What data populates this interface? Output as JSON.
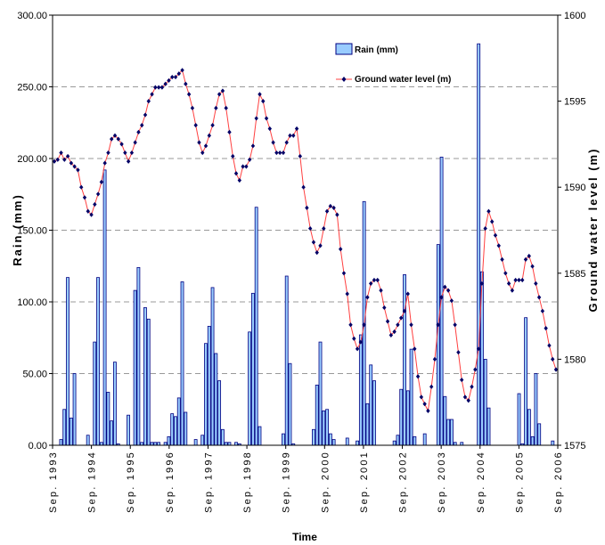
{
  "chart_data": {
    "type": "bar+line",
    "title": "",
    "xlabel": "Time",
    "ylabel_left": "Rain (mm)",
    "ylabel_right": "Ground water level (m)",
    "ylim_left": [
      0,
      300
    ],
    "ylim_right": [
      1575,
      1600
    ],
    "yticks_left": [
      "0.00",
      "50.00",
      "100.00",
      "150.00",
      "200.00",
      "250.00",
      "300.00"
    ],
    "yticks_right": [
      "1575",
      "1580",
      "1585",
      "1590",
      "1595",
      "1600"
    ],
    "xticks": [
      "Sep. 1993",
      "Sep. 1994",
      "Sep. 1995",
      "Sep. 1996",
      "Sep. 1997",
      "Sep. 1998",
      "Sep. 1999",
      "Sep. 2000",
      "Sep. 2001",
      "Sep. 2002",
      "Sep. 2003",
      "Sep. 2004",
      "Sep. 2005",
      "Sep. 2006"
    ],
    "grid": "horizontal dashed",
    "legend_position": "top-right",
    "colors": {
      "bar_fill": "#99ccff",
      "bar_stroke": "#000080",
      "line": "#ff4040",
      "marker": "#000066",
      "grid": "#999999"
    },
    "series": [
      {
        "name": "Rain (mm)",
        "kind": "bar",
        "axis": "left",
        "values": [
          0,
          0,
          4,
          25,
          117,
          19,
          50,
          0,
          0,
          0,
          7,
          0,
          72,
          117,
          2,
          192,
          37,
          17,
          58,
          1,
          0,
          0,
          21,
          0,
          108,
          124,
          2,
          96,
          88,
          2,
          2,
          2,
          0,
          2,
          6,
          22,
          20,
          33,
          114,
          23,
          0,
          0,
          4,
          0,
          7,
          71,
          83,
          110,
          64,
          45,
          11,
          2,
          2,
          0,
          2,
          1,
          0,
          0,
          79,
          106,
          166,
          13,
          0,
          0,
          0,
          0,
          0,
          0,
          8,
          118,
          57,
          1,
          0,
          0,
          0,
          0,
          0,
          11,
          42,
          72,
          24,
          25,
          8,
          4,
          0,
          0,
          0,
          5,
          0,
          0,
          3,
          77,
          170,
          29,
          56,
          45,
          0,
          0,
          0,
          0,
          0,
          3,
          7,
          39,
          119,
          38,
          67,
          6,
          0,
          0,
          8,
          0,
          0,
          0,
          140,
          201,
          34,
          18,
          18,
          2,
          0,
          2,
          0,
          0,
          0,
          0,
          280,
          121,
          60,
          26,
          0,
          0,
          0,
          0,
          0,
          0,
          0,
          0,
          36,
          1,
          89,
          25,
          6,
          50,
          15,
          0,
          0,
          0,
          3,
          0
        ]
      },
      {
        "name": "Ground water level (m)",
        "kind": "line",
        "axis": "right",
        "values": [
          1591.5,
          1591.6,
          1592.0,
          1591.6,
          1591.8,
          1591.4,
          1591.2,
          1591.0,
          1590.0,
          1589.4,
          1588.6,
          1588.4,
          1589.0,
          1589.6,
          1590.3,
          1591.4,
          1592.0,
          1592.8,
          1593.0,
          1592.8,
          1592.5,
          1592.0,
          1591.5,
          1592.0,
          1592.6,
          1593.2,
          1593.6,
          1594.2,
          1595.0,
          1595.4,
          1595.8,
          1595.8,
          1595.8,
          1596.0,
          1596.2,
          1596.4,
          1596.4,
          1596.6,
          1596.8,
          1596.0,
          1595.4,
          1594.6,
          1593.6,
          1592.6,
          1592.0,
          1592.4,
          1593.0,
          1593.6,
          1594.6,
          1595.4,
          1595.6,
          1594.6,
          1593.2,
          1591.8,
          1590.8,
          1590.4,
          1591.2,
          1591.2,
          1591.6,
          1592.4,
          1594.0,
          1595.4,
          1595.0,
          1594.0,
          1593.4,
          1592.6,
          1592.0,
          1592.0,
          1592.0,
          1592.6,
          1593.0,
          1593.0,
          1593.4,
          1591.8,
          1590.0,
          1588.8,
          1587.6,
          1586.8,
          1586.2,
          1586.6,
          1587.6,
          1588.6,
          1588.9,
          1588.8,
          1588.4,
          1586.4,
          1585.0,
          1583.8,
          1582.0,
          1581.2,
          1580.6,
          1581.0,
          1582.0,
          1583.6,
          1584.4,
          1584.6,
          1584.6,
          1584.0,
          1583.0,
          1582.2,
          1581.4,
          1581.6,
          1582.0,
          1582.4,
          1582.8,
          1583.8,
          1582.0,
          1580.6,
          1579.0,
          1577.8,
          1577.4,
          1577.0,
          1578.4,
          1580.0,
          1582.0,
          1583.6,
          1584.2,
          1584.0,
          1583.4,
          1582.0,
          1580.4,
          1578.8,
          1577.8,
          1577.6,
          1578.4,
          1579.4,
          1580.6,
          1584.4,
          1587.6,
          1588.6,
          1588.0,
          1587.2,
          1586.6,
          1585.8,
          1585.0,
          1584.4,
          1584.0,
          1584.6,
          1584.6,
          1584.6,
          1585.8,
          1586.0,
          1585.4,
          1584.4,
          1583.6,
          1582.8,
          1581.8,
          1580.8,
          1580.0,
          1579.4
        ]
      }
    ]
  }
}
